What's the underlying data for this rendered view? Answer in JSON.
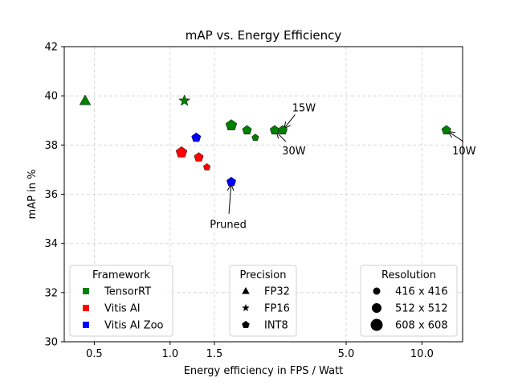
{
  "chart_data": {
    "type": "scatter",
    "title": "mAP vs. Energy Efficiency",
    "xlabel": "Energy efficiency in FPS / Watt",
    "ylabel": "mAP in %",
    "xscale": "log",
    "xlim": [
      0.38,
      14.5
    ],
    "ylim": [
      30,
      42
    ],
    "grid": true,
    "xticks": [
      {
        "value": 0.5,
        "label": "0.5"
      },
      {
        "value": 1.0,
        "label": "1.0"
      },
      {
        "value": 1.5,
        "label": "1.5"
      },
      {
        "value": 5.0,
        "label": "5.0"
      },
      {
        "value": 10.0,
        "label": "10.0"
      }
    ],
    "yticks": [
      {
        "value": 30,
        "label": "30"
      },
      {
        "value": 32,
        "label": "32"
      },
      {
        "value": 34,
        "label": "34"
      },
      {
        "value": 36,
        "label": "36"
      },
      {
        "value": 38,
        "label": "38"
      },
      {
        "value": 40,
        "label": "40"
      },
      {
        "value": 42,
        "label": "42"
      }
    ],
    "colors": {
      "TensorRT": "#008000",
      "Vitis AI": "#ff0000",
      "Vitis AI Zoo": "#0000ff"
    },
    "points": [
      {
        "x": 0.46,
        "y": 39.8,
        "framework": "TensorRT",
        "precision": "FP32",
        "resolution": "608 x 608"
      },
      {
        "x": 1.14,
        "y": 39.8,
        "framework": "TensorRT",
        "precision": "FP16",
        "resolution": "608 x 608"
      },
      {
        "x": 1.75,
        "y": 38.8,
        "framework": "TensorRT",
        "precision": "INT8",
        "resolution": "608 x 608"
      },
      {
        "x": 2.02,
        "y": 38.6,
        "framework": "TensorRT",
        "precision": "INT8",
        "resolution": "512 x 512"
      },
      {
        "x": 2.18,
        "y": 38.3,
        "framework": "TensorRT",
        "precision": "INT8",
        "resolution": "416 x 416"
      },
      {
        "x": 2.6,
        "y": 38.6,
        "framework": "TensorRT",
        "precision": "INT8",
        "resolution": "512 x 512"
      },
      {
        "x": 2.8,
        "y": 38.6,
        "framework": "TensorRT",
        "precision": "INT8",
        "resolution": "512 x 512"
      },
      {
        "x": 12.5,
        "y": 38.6,
        "framework": "TensorRT",
        "precision": "INT8",
        "resolution": "512 x 512"
      },
      {
        "x": 1.27,
        "y": 38.3,
        "framework": "Vitis AI Zoo",
        "precision": "INT8",
        "resolution": "512 x 512"
      },
      {
        "x": 1.75,
        "y": 36.5,
        "framework": "Vitis AI Zoo",
        "precision": "INT8",
        "resolution": "512 x 512"
      },
      {
        "x": 1.11,
        "y": 37.7,
        "framework": "Vitis AI",
        "precision": "INT8",
        "resolution": "608 x 608"
      },
      {
        "x": 1.3,
        "y": 37.5,
        "framework": "Vitis AI",
        "precision": "INT8",
        "resolution": "512 x 512"
      },
      {
        "x": 1.4,
        "y": 37.1,
        "framework": "Vitis AI",
        "precision": "INT8",
        "resolution": "416 x 416"
      }
    ],
    "annotations": [
      {
        "text": "15W",
        "point": [
          2.8,
          38.6
        ],
        "text_at": [
          3.4,
          39.5
        ]
      },
      {
        "text": "30W",
        "point": [
          2.6,
          38.6
        ],
        "text_at": [
          3.1,
          37.75
        ]
      },
      {
        "text": "10W",
        "point": [
          12.5,
          38.6
        ],
        "text_at": [
          14.7,
          37.75
        ]
      },
      {
        "text": "Pruned",
        "point": [
          1.75,
          36.5
        ],
        "text_at": [
          1.7,
          34.75
        ]
      }
    ],
    "legends": [
      {
        "title": "Framework",
        "entries": [
          {
            "label": "TensorRT",
            "color": "#008000",
            "shape": "square"
          },
          {
            "label": "Vitis AI",
            "color": "#ff0000",
            "shape": "square"
          },
          {
            "label": "Vitis AI Zoo",
            "color": "#0000ff",
            "shape": "square"
          }
        ],
        "location": "bottom-left"
      },
      {
        "title": "Precision",
        "entries": [
          {
            "label": "FP32",
            "shape": "triangle"
          },
          {
            "label": "FP16",
            "shape": "star"
          },
          {
            "label": "INT8",
            "shape": "pentagon"
          }
        ],
        "location": "bottom-center"
      },
      {
        "title": "Resolution",
        "entries": [
          {
            "label": "416 x 416",
            "size": "small"
          },
          {
            "label": "512 x 512",
            "size": "medium"
          },
          {
            "label": "608 x 608",
            "size": "large"
          }
        ],
        "location": "bottom-right"
      }
    ]
  }
}
